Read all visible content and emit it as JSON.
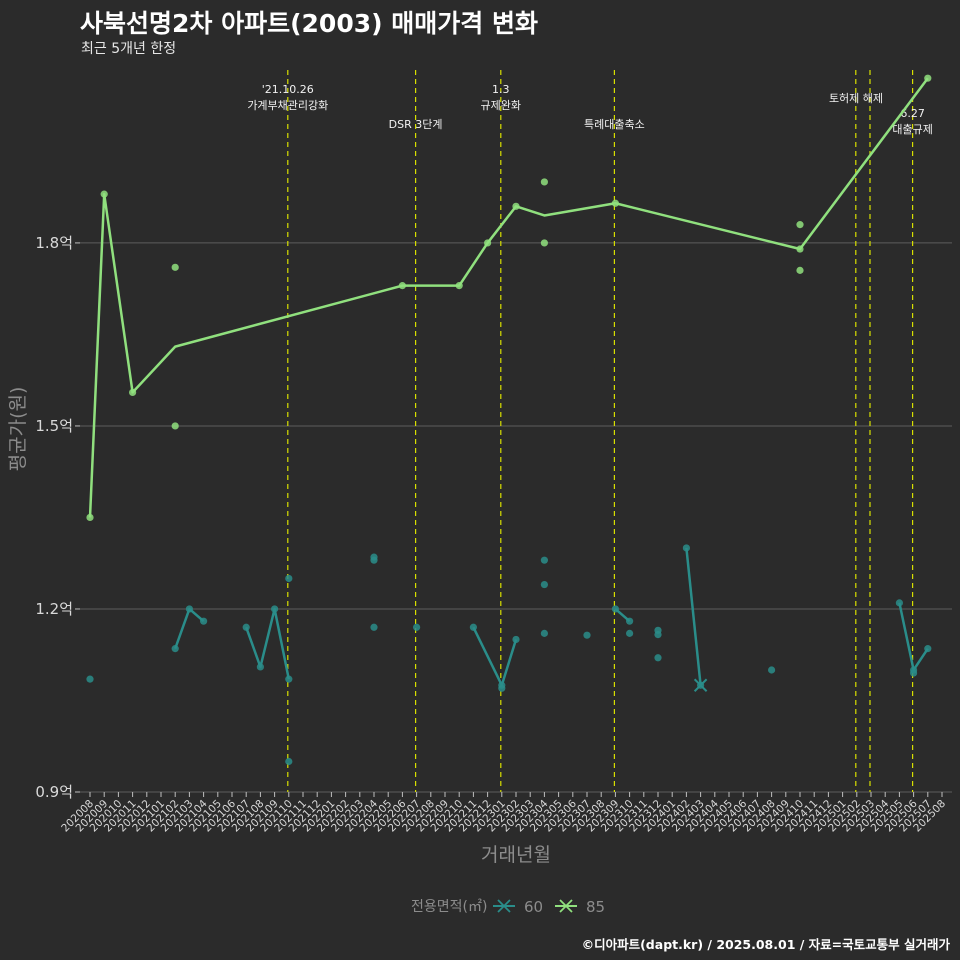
{
  "header": {
    "title": "사북선명2차 아파트(2003) 매매가격 변화",
    "subtitle": "최근 5개년 한정"
  },
  "caption": "©디아파트(dapt.kr) / 2025.08.01 / 자료=국토교통부 실거래가",
  "colors": {
    "background": "#2b2b2b",
    "grid": "#5e5e5e",
    "series_60": "#2a8d8a",
    "series_85": "#90e07e",
    "event_line": "#d8e000"
  },
  "chart_data": {
    "type": "line",
    "xlabel": "거래년월",
    "ylabel": "평균가(원)",
    "y_tick_labels": [
      "0.9억",
      "1.2억",
      "1.5억",
      "1.8억"
    ],
    "y_ticks": [
      0.9,
      1.2,
      1.5,
      1.8
    ],
    "ylim": [
      0.9,
      2.09
    ],
    "x_categories": [
      "202008",
      "202009",
      "202010",
      "202011",
      "202012",
      "202101",
      "202102",
      "202103",
      "202104",
      "202105",
      "202106",
      "202107",
      "202108",
      "202109",
      "202110",
      "202111",
      "202112",
      "202201",
      "202202",
      "202203",
      "202204",
      "202205",
      "202206",
      "202207",
      "202208",
      "202209",
      "202210",
      "202211",
      "202212",
      "202301",
      "202302",
      "202303",
      "202304",
      "202305",
      "202306",
      "202307",
      "202308",
      "202309",
      "202310",
      "202311",
      "202312",
      "202401",
      "202402",
      "202403",
      "202404",
      "202405",
      "202406",
      "202407",
      "202408",
      "202409",
      "202410",
      "202411",
      "202412",
      "202501",
      "202502",
      "202503",
      "202504",
      "202505",
      "202506",
      "202507",
      "202508"
    ],
    "grid": true,
    "legend": {
      "title": "전용면적(㎡)",
      "position": "bottom",
      "entries": [
        "60",
        "85"
      ]
    },
    "events": [
      {
        "month": "202110",
        "label": [
          "'21.10.26",
          "가계부채관리강화"
        ]
      },
      {
        "month": "202207",
        "label": [
          "DSR 3단계"
        ]
      },
      {
        "month": "202301",
        "label": [
          "1.3",
          "규제완화"
        ]
      },
      {
        "month": "202309",
        "label": [
          "특례대출축소"
        ]
      },
      {
        "month": "202502",
        "label": []
      },
      {
        "month": "202503",
        "label": [
          "토허제 해제"
        ]
      },
      {
        "month": "202506",
        "label": [
          "6.27",
          "대출규제"
        ]
      }
    ],
    "series": [
      {
        "name": "60",
        "line_segments": [
          [
            [
              "202102",
              1.135
            ],
            [
              "202103",
              1.2
            ],
            [
              "202104",
              1.18
            ]
          ],
          [
            [
              "202107",
              1.17
            ],
            [
              "202108",
              1.105
            ],
            [
              "202109",
              1.2
            ],
            [
              "202110",
              1.085
            ]
          ],
          [
            [
              "202211",
              1.17
            ],
            [
              "202301",
              1.075
            ],
            [
              "202302",
              1.15
            ]
          ],
          [
            [
              "202309",
              1.2
            ],
            [
              "202310",
              1.18
            ]
          ],
          [
            [
              "202402",
              1.3
            ],
            [
              "202403",
              1.075
            ]
          ],
          [
            [
              "202505",
              1.21
            ],
            [
              "202506",
              1.1
            ],
            [
              "202507",
              1.135
            ]
          ]
        ],
        "points": [
          [
            "202008",
            1.085
          ],
          [
            "202102",
            1.135
          ],
          [
            "202103",
            1.2
          ],
          [
            "202104",
            1.18
          ],
          [
            "202107",
            1.17
          ],
          [
            "202108",
            1.105
          ],
          [
            "202109",
            1.2
          ],
          [
            "202110",
            1.25
          ],
          [
            "202110",
            1.085
          ],
          [
            "202110",
            0.95
          ],
          [
            "202204",
            1.285
          ],
          [
            "202204",
            1.28
          ],
          [
            "202204",
            1.17
          ],
          [
            "202207",
            1.17
          ],
          [
            "202211",
            1.17
          ],
          [
            "202301",
            1.075
          ],
          [
            "202301",
            1.07
          ],
          [
            "202302",
            1.15
          ],
          [
            "202304",
            1.28
          ],
          [
            "202304",
            1.24
          ],
          [
            "202304",
            1.16
          ],
          [
            "202307",
            1.157
          ],
          [
            "202309",
            1.2
          ],
          [
            "202310",
            1.18
          ],
          [
            "202310",
            1.16
          ],
          [
            "202312",
            1.165
          ],
          [
            "202312",
            1.158
          ],
          [
            "202312",
            1.12
          ],
          [
            "202402",
            1.3
          ],
          [
            "202403",
            1.075
          ],
          [
            "202408",
            1.1
          ],
          [
            "202505",
            1.21
          ],
          [
            "202506",
            1.1
          ],
          [
            "202506",
            1.095
          ],
          [
            "202507",
            1.135
          ]
        ]
      },
      {
        "name": "85",
        "line": [
          [
            "202008",
            1.35
          ],
          [
            "202009",
            1.88
          ],
          [
            "202011",
            1.555
          ],
          [
            "202102",
            1.63
          ],
          [
            "202206",
            1.73
          ],
          [
            "202210",
            1.73
          ],
          [
            "202212",
            1.8
          ],
          [
            "202302",
            1.86
          ],
          [
            "202304",
            1.845
          ],
          [
            "202309",
            1.865
          ],
          [
            "202410",
            1.79
          ],
          [
            "202507",
            2.07
          ]
        ],
        "points": [
          [
            "202008",
            1.35
          ],
          [
            "202009",
            1.88
          ],
          [
            "202011",
            1.555
          ],
          [
            "202102",
            1.76
          ],
          [
            "202102",
            1.5
          ],
          [
            "202206",
            1.73
          ],
          [
            "202210",
            1.73
          ],
          [
            "202212",
            1.8
          ],
          [
            "202302",
            1.86
          ],
          [
            "202304",
            1.9
          ],
          [
            "202304",
            1.8
          ],
          [
            "202309",
            1.865
          ],
          [
            "202410",
            1.83
          ],
          [
            "202410",
            1.79
          ],
          [
            "202410",
            1.755
          ],
          [
            "202507",
            2.07
          ]
        ]
      }
    ]
  }
}
